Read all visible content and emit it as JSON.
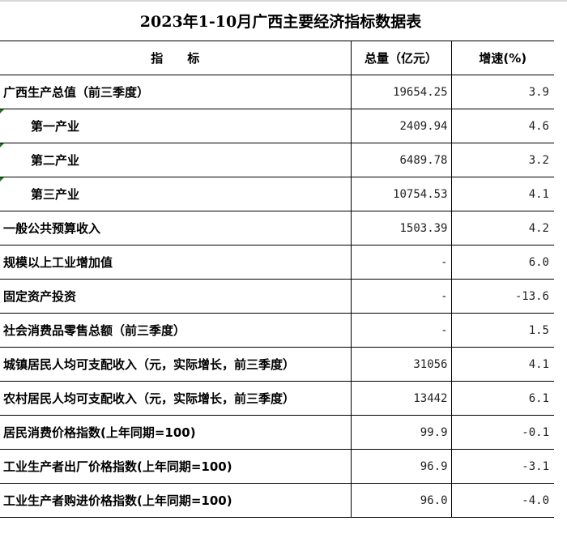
{
  "title": "2023年1-10月广西主要经济指标数据表",
  "headers": {
    "indicator": "指　　标",
    "total": "总量（亿元）",
    "growth": "增速(%)"
  },
  "rows": [
    {
      "name": "广西生产总值（前三季度）",
      "total": "19654.25",
      "growth": "3.9",
      "sub": false
    },
    {
      "name": "第一产业",
      "total": "2409.94",
      "growth": "4.6",
      "sub": true
    },
    {
      "name": "第二产业",
      "total": "6489.78",
      "growth": "3.2",
      "sub": true
    },
    {
      "name": "第三产业",
      "total": "10754.53",
      "growth": "4.1",
      "sub": true
    },
    {
      "name": "一般公共预算收入",
      "total": "1503.39",
      "growth": "4.2",
      "sub": false
    },
    {
      "name": "规模以上工业增加值",
      "total": "-",
      "growth": "6.0",
      "sub": false
    },
    {
      "name": "固定资产投资",
      "total": "-",
      "growth": "-13.6",
      "sub": false
    },
    {
      "name": "社会消费品零售总额（前三季度）",
      "total": "-",
      "growth": "1.5",
      "sub": false
    },
    {
      "name": "城镇居民人均可支配收入（元，实际增长，前三季度）",
      "total": "31056",
      "growth": "4.1",
      "sub": false
    },
    {
      "name": "农村居民人均可支配收入（元，实际增长，前三季度）",
      "total": "13442",
      "growth": "6.1",
      "sub": false
    },
    {
      "name": "居民消费价格指数(上年同期=100)",
      "total": "99.9",
      "growth": "-0.1",
      "sub": false
    },
    {
      "name": "工业生产者出厂价格指数(上年同期=100)",
      "total": "96.9",
      "growth": "-3.1",
      "sub": false
    },
    {
      "name": "工业生产者购进价格指数(上年同期=100)",
      "total": "96.0",
      "growth": "-4.0",
      "sub": false
    }
  ]
}
